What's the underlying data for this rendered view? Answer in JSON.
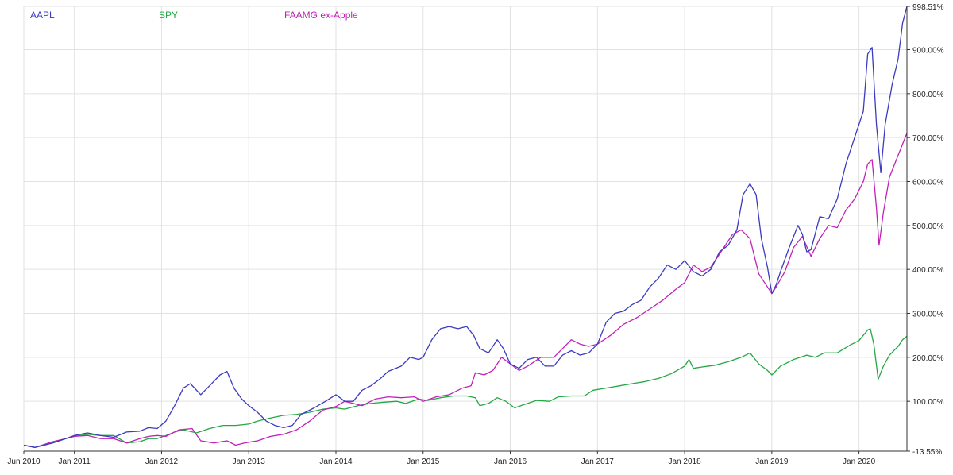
{
  "chart_data": {
    "type": "line",
    "title": "",
    "xlabel": "",
    "ylabel": "",
    "x_ticks": [
      "Jun 2010",
      "Jan 2011",
      "Jan 2012",
      "Jan 2013",
      "Jan 2014",
      "Jan 2015",
      "Jan 2016",
      "Jan 2017",
      "Jan 2018",
      "Jan 2019",
      "Jan 2020"
    ],
    "x_tick_values": [
      2010.42,
      2011.0,
      2012.0,
      2013.0,
      2014.0,
      2015.0,
      2016.0,
      2017.0,
      2018.0,
      2019.0,
      2020.0
    ],
    "xlim": [
      2010.42,
      2020.55
    ],
    "y_ticks": [
      "-13.55%",
      "100.00%",
      "200.00%",
      "300.00%",
      "400.00%",
      "500.00%",
      "600.00%",
      "700.00%",
      "800.00%",
      "900.00%",
      "998.51%"
    ],
    "y_tick_values": [
      -13.55,
      100,
      200,
      300,
      400,
      500,
      600,
      700,
      800,
      900,
      998.51
    ],
    "ylim": [
      -13.55,
      998.51
    ],
    "series": [
      {
        "name": "AAPL",
        "color": "#3b3bbf",
        "points": [
          [
            2010.42,
            0
          ],
          [
            2010.55,
            -5
          ],
          [
            2010.75,
            5
          ],
          [
            2010.9,
            15
          ],
          [
            2011.0,
            22
          ],
          [
            2011.15,
            28
          ],
          [
            2011.3,
            22
          ],
          [
            2011.45,
            18
          ],
          [
            2011.6,
            30
          ],
          [
            2011.75,
            32
          ],
          [
            2011.85,
            40
          ],
          [
            2011.95,
            38
          ],
          [
            2012.05,
            55
          ],
          [
            2012.15,
            90
          ],
          [
            2012.25,
            130
          ],
          [
            2012.33,
            140
          ],
          [
            2012.45,
            115
          ],
          [
            2012.55,
            135
          ],
          [
            2012.67,
            160
          ],
          [
            2012.75,
            168
          ],
          [
            2012.83,
            130
          ],
          [
            2012.92,
            105
          ],
          [
            2013.0,
            90
          ],
          [
            2013.1,
            75
          ],
          [
            2013.2,
            55
          ],
          [
            2013.3,
            45
          ],
          [
            2013.4,
            40
          ],
          [
            2013.5,
            45
          ],
          [
            2013.6,
            70
          ],
          [
            2013.75,
            85
          ],
          [
            2013.88,
            100
          ],
          [
            2014.0,
            115
          ],
          [
            2014.1,
            100
          ],
          [
            2014.2,
            100
          ],
          [
            2014.3,
            125
          ],
          [
            2014.4,
            135
          ],
          [
            2014.5,
            150
          ],
          [
            2014.6,
            168
          ],
          [
            2014.75,
            180
          ],
          [
            2014.85,
            200
          ],
          [
            2014.95,
            195
          ],
          [
            2015.0,
            200
          ],
          [
            2015.1,
            240
          ],
          [
            2015.2,
            265
          ],
          [
            2015.3,
            270
          ],
          [
            2015.4,
            265
          ],
          [
            2015.5,
            270
          ],
          [
            2015.58,
            250
          ],
          [
            2015.65,
            220
          ],
          [
            2015.75,
            210
          ],
          [
            2015.85,
            240
          ],
          [
            2015.92,
            220
          ],
          [
            2016.0,
            185
          ],
          [
            2016.1,
            175
          ],
          [
            2016.2,
            195
          ],
          [
            2016.3,
            200
          ],
          [
            2016.4,
            180
          ],
          [
            2016.5,
            180
          ],
          [
            2016.6,
            205
          ],
          [
            2016.7,
            215
          ],
          [
            2016.8,
            205
          ],
          [
            2016.9,
            210
          ],
          [
            2017.0,
            230
          ],
          [
            2017.1,
            280
          ],
          [
            2017.2,
            300
          ],
          [
            2017.3,
            305
          ],
          [
            2017.4,
            320
          ],
          [
            2017.5,
            330
          ],
          [
            2017.6,
            360
          ],
          [
            2017.7,
            380
          ],
          [
            2017.8,
            410
          ],
          [
            2017.9,
            400
          ],
          [
            2018.0,
            420
          ],
          [
            2018.1,
            395
          ],
          [
            2018.2,
            385
          ],
          [
            2018.3,
            400
          ],
          [
            2018.4,
            440
          ],
          [
            2018.5,
            455
          ],
          [
            2018.6,
            490
          ],
          [
            2018.67,
            570
          ],
          [
            2018.75,
            595
          ],
          [
            2018.82,
            570
          ],
          [
            2018.88,
            470
          ],
          [
            2018.95,
            405
          ],
          [
            2019.0,
            345
          ],
          [
            2019.05,
            365
          ],
          [
            2019.1,
            395
          ],
          [
            2019.2,
            450
          ],
          [
            2019.3,
            500
          ],
          [
            2019.35,
            480
          ],
          [
            2019.4,
            440
          ],
          [
            2019.45,
            445
          ],
          [
            2019.55,
            520
          ],
          [
            2019.65,
            515
          ],
          [
            2019.75,
            560
          ],
          [
            2019.85,
            640
          ],
          [
            2019.95,
            700
          ],
          [
            2020.05,
            760
          ],
          [
            2020.1,
            890
          ],
          [
            2020.15,
            905
          ],
          [
            2020.2,
            730
          ],
          [
            2020.25,
            620
          ],
          [
            2020.3,
            730
          ],
          [
            2020.38,
            820
          ],
          [
            2020.45,
            880
          ],
          [
            2020.5,
            960
          ],
          [
            2020.55,
            998.51
          ]
        ]
      },
      {
        "name": "SPY",
        "color": "#22a844",
        "points": [
          [
            2010.42,
            0
          ],
          [
            2010.55,
            -5
          ],
          [
            2010.75,
            5
          ],
          [
            2010.9,
            15
          ],
          [
            2011.0,
            20
          ],
          [
            2011.15,
            25
          ],
          [
            2011.3,
            22
          ],
          [
            2011.45,
            22
          ],
          [
            2011.6,
            5
          ],
          [
            2011.75,
            8
          ],
          [
            2011.85,
            15
          ],
          [
            2011.95,
            15
          ],
          [
            2012.05,
            22
          ],
          [
            2012.15,
            30
          ],
          [
            2012.25,
            35
          ],
          [
            2012.4,
            28
          ],
          [
            2012.55,
            38
          ],
          [
            2012.7,
            45
          ],
          [
            2012.85,
            45
          ],
          [
            2013.0,
            48
          ],
          [
            2013.1,
            55
          ],
          [
            2013.25,
            62
          ],
          [
            2013.4,
            68
          ],
          [
            2013.55,
            70
          ],
          [
            2013.7,
            75
          ],
          [
            2013.85,
            82
          ],
          [
            2014.0,
            85
          ],
          [
            2014.1,
            82
          ],
          [
            2014.25,
            90
          ],
          [
            2014.4,
            95
          ],
          [
            2014.55,
            98
          ],
          [
            2014.7,
            100
          ],
          [
            2014.8,
            95
          ],
          [
            2014.95,
            105
          ],
          [
            2015.05,
            102
          ],
          [
            2015.2,
            108
          ],
          [
            2015.35,
            112
          ],
          [
            2015.5,
            112
          ],
          [
            2015.6,
            108
          ],
          [
            2015.65,
            90
          ],
          [
            2015.75,
            95
          ],
          [
            2015.85,
            108
          ],
          [
            2015.95,
            100
          ],
          [
            2016.05,
            85
          ],
          [
            2016.15,
            92
          ],
          [
            2016.3,
            102
          ],
          [
            2016.45,
            100
          ],
          [
            2016.55,
            110
          ],
          [
            2016.7,
            112
          ],
          [
            2016.85,
            112
          ],
          [
            2016.95,
            125
          ],
          [
            2017.1,
            130
          ],
          [
            2017.25,
            135
          ],
          [
            2017.4,
            140
          ],
          [
            2017.55,
            145
          ],
          [
            2017.7,
            152
          ],
          [
            2017.85,
            163
          ],
          [
            2018.0,
            180
          ],
          [
            2018.05,
            195
          ],
          [
            2018.1,
            175
          ],
          [
            2018.2,
            178
          ],
          [
            2018.35,
            182
          ],
          [
            2018.5,
            190
          ],
          [
            2018.65,
            200
          ],
          [
            2018.75,
            210
          ],
          [
            2018.85,
            185
          ],
          [
            2018.95,
            170
          ],
          [
            2019.0,
            160
          ],
          [
            2019.1,
            180
          ],
          [
            2019.25,
            195
          ],
          [
            2019.4,
            205
          ],
          [
            2019.5,
            200
          ],
          [
            2019.6,
            210
          ],
          [
            2019.75,
            210
          ],
          [
            2019.9,
            228
          ],
          [
            2020.0,
            238
          ],
          [
            2020.1,
            262
          ],
          [
            2020.13,
            265
          ],
          [
            2020.17,
            230
          ],
          [
            2020.22,
            150
          ],
          [
            2020.28,
            180
          ],
          [
            2020.35,
            205
          ],
          [
            2020.45,
            225
          ],
          [
            2020.5,
            240
          ],
          [
            2020.55,
            248
          ]
        ]
      },
      {
        "name": "FAAMG ex-Apple",
        "color": "#c022b8",
        "points": [
          [
            2010.42,
            0
          ],
          [
            2010.55,
            -5
          ],
          [
            2010.75,
            8
          ],
          [
            2010.9,
            15
          ],
          [
            2011.0,
            20
          ],
          [
            2011.15,
            22
          ],
          [
            2011.3,
            15
          ],
          [
            2011.45,
            15
          ],
          [
            2011.6,
            5
          ],
          [
            2011.75,
            15
          ],
          [
            2011.85,
            20
          ],
          [
            2011.95,
            22
          ],
          [
            2012.05,
            20
          ],
          [
            2012.2,
            35
          ],
          [
            2012.35,
            38
          ],
          [
            2012.45,
            10
          ],
          [
            2012.6,
            5
          ],
          [
            2012.75,
            10
          ],
          [
            2012.85,
            0
          ],
          [
            2012.95,
            5
          ],
          [
            2013.1,
            10
          ],
          [
            2013.25,
            20
          ],
          [
            2013.4,
            25
          ],
          [
            2013.55,
            35
          ],
          [
            2013.7,
            55
          ],
          [
            2013.85,
            80
          ],
          [
            2014.0,
            88
          ],
          [
            2014.1,
            100
          ],
          [
            2014.2,
            95
          ],
          [
            2014.3,
            90
          ],
          [
            2014.45,
            105
          ],
          [
            2014.6,
            110
          ],
          [
            2014.75,
            108
          ],
          [
            2014.9,
            110
          ],
          [
            2015.0,
            100
          ],
          [
            2015.15,
            110
          ],
          [
            2015.3,
            115
          ],
          [
            2015.45,
            130
          ],
          [
            2015.55,
            135
          ],
          [
            2015.6,
            165
          ],
          [
            2015.7,
            160
          ],
          [
            2015.8,
            170
          ],
          [
            2015.9,
            200
          ],
          [
            2016.0,
            185
          ],
          [
            2016.1,
            170
          ],
          [
            2016.2,
            180
          ],
          [
            2016.35,
            200
          ],
          [
            2016.5,
            200
          ],
          [
            2016.6,
            220
          ],
          [
            2016.7,
            240
          ],
          [
            2016.8,
            230
          ],
          [
            2016.9,
            225
          ],
          [
            2017.0,
            230
          ],
          [
            2017.15,
            250
          ],
          [
            2017.3,
            275
          ],
          [
            2017.45,
            290
          ],
          [
            2017.6,
            310
          ],
          [
            2017.75,
            330
          ],
          [
            2017.9,
            355
          ],
          [
            2018.0,
            370
          ],
          [
            2018.1,
            410
          ],
          [
            2018.2,
            395
          ],
          [
            2018.3,
            405
          ],
          [
            2018.45,
            450
          ],
          [
            2018.55,
            480
          ],
          [
            2018.65,
            490
          ],
          [
            2018.75,
            470
          ],
          [
            2018.85,
            390
          ],
          [
            2018.95,
            360
          ],
          [
            2019.0,
            345
          ],
          [
            2019.05,
            360
          ],
          [
            2019.15,
            395
          ],
          [
            2019.25,
            450
          ],
          [
            2019.35,
            475
          ],
          [
            2019.45,
            430
          ],
          [
            2019.55,
            470
          ],
          [
            2019.65,
            500
          ],
          [
            2019.75,
            495
          ],
          [
            2019.85,
            535
          ],
          [
            2019.95,
            560
          ],
          [
            2020.05,
            600
          ],
          [
            2020.1,
            640
          ],
          [
            2020.15,
            650
          ],
          [
            2020.2,
            540
          ],
          [
            2020.23,
            455
          ],
          [
            2020.28,
            530
          ],
          [
            2020.35,
            610
          ],
          [
            2020.45,
            660
          ],
          [
            2020.55,
            710
          ]
        ]
      }
    ],
    "legend_position": "top-left"
  }
}
